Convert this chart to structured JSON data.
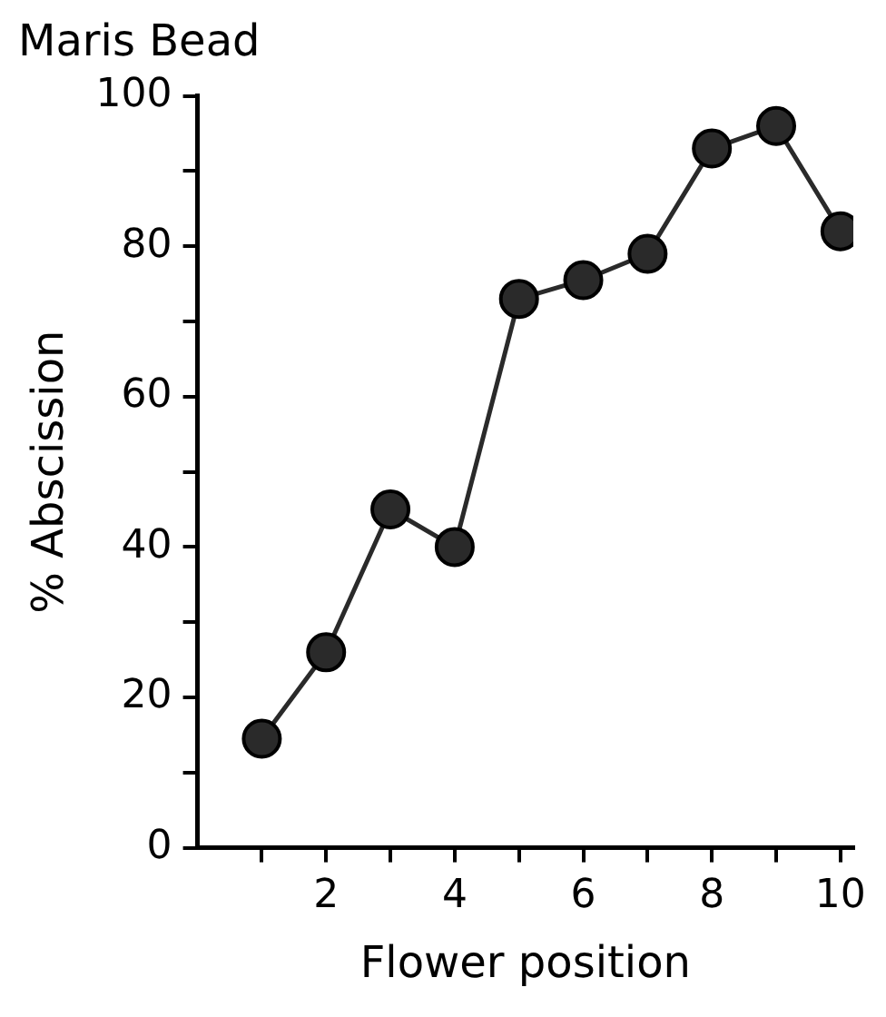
{
  "chart_data": {
    "type": "line",
    "title": "Maris Bead",
    "xlabel": "Flower position",
    "ylabel": "% Abscission",
    "x": [
      1,
      2,
      3,
      4,
      5,
      6,
      7,
      8,
      9,
      10
    ],
    "series": [
      {
        "color": "#2a2a2a",
        "values": [
          14.5,
          26,
          45,
          40,
          73,
          75.5,
          79,
          93,
          96,
          82
        ]
      }
    ],
    "xlim": [
      0,
      10.2
    ],
    "xticks": [
      {
        "value": 1,
        "label": null
      },
      2,
      {
        "value": 3,
        "label": null
      },
      4,
      {
        "value": 5,
        "label": null
      },
      6,
      {
        "value": 7,
        "label": null
      },
      8,
      {
        "value": 9,
        "label": null
      },
      10
    ],
    "ylim": [
      0,
      100
    ],
    "yticks": [
      0,
      {
        "value": 10,
        "label": null
      },
      20,
      {
        "value": 30,
        "label": null
      },
      40,
      {
        "value": 50,
        "label": null
      },
      60,
      {
        "value": 70,
        "label": null
      },
      80,
      {
        "value": 90,
        "label": null
      },
      100
    ],
    "grid": false,
    "legend": false,
    "marker": "circle",
    "line_style": "solid"
  }
}
